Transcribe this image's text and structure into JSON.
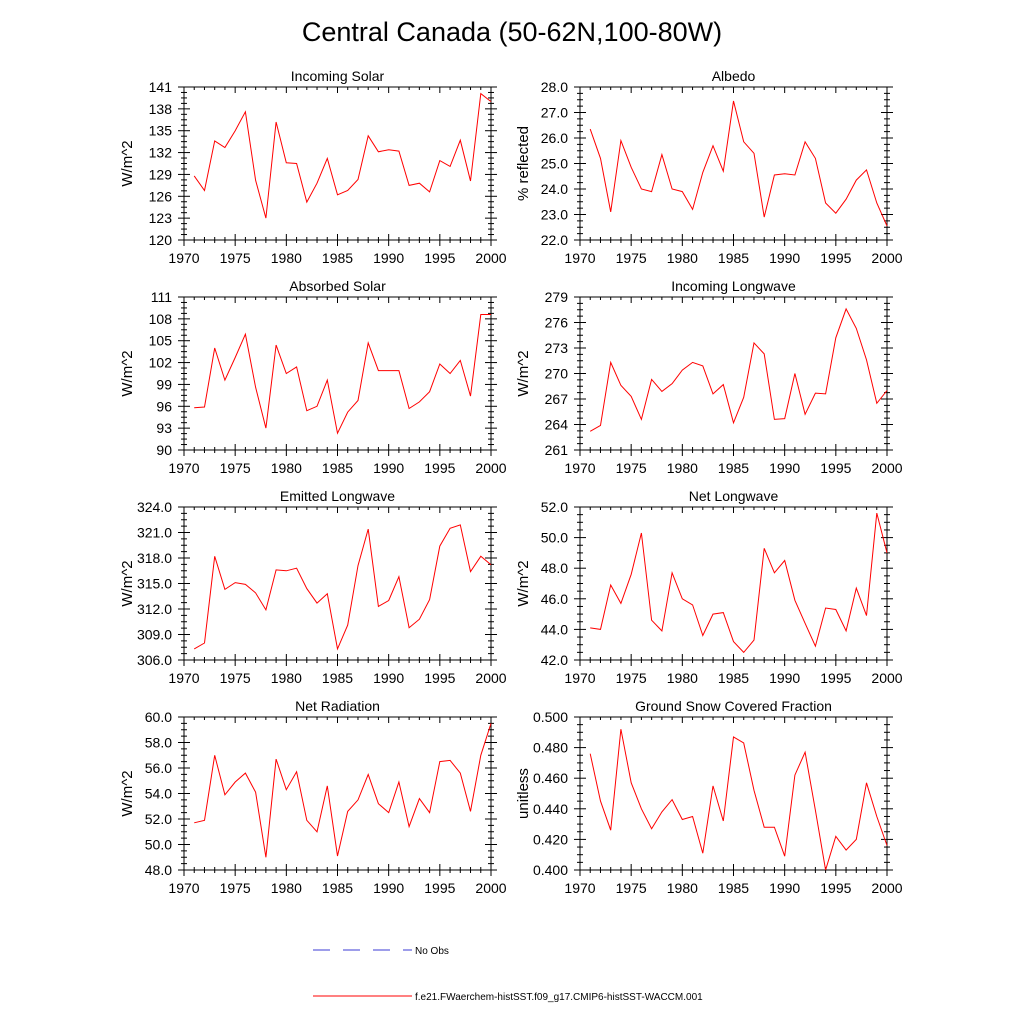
{
  "title": "Central Canada (50-62N,100-80W)",
  "legend": [
    {
      "label": "No Obs",
      "color": "#3b3bd6",
      "style": "dashed"
    },
    {
      "label": "f.e21.FWaerchem-histSST.f09_g17.CMIP6-histSST-WACCM.001",
      "color": "#ff0000",
      "style": "solid"
    }
  ],
  "chart_data": [
    {
      "type": "line",
      "title": "Incoming Solar",
      "ylabel": "W/m^2",
      "xlim": [
        1970,
        2000
      ],
      "ylim": [
        120,
        141
      ],
      "xticks": [
        1970,
        1975,
        1980,
        1985,
        1990,
        1995,
        2000
      ],
      "yticks": [
        "120",
        "123",
        "126",
        "129",
        "132",
        "135",
        "138",
        "141"
      ],
      "x": [
        1971,
        1972,
        1973,
        1974,
        1975,
        1976,
        1977,
        1978,
        1979,
        1980,
        1981,
        1982,
        1983,
        1984,
        1985,
        1986,
        1987,
        1988,
        1989,
        1990,
        1991,
        1992,
        1993,
        1994,
        1995,
        1996,
        1997,
        1998,
        1999,
        2000
      ],
      "series": [
        {
          "color": "#ff0000",
          "values": [
            128.8,
            126.8,
            133.6,
            132.7,
            135.0,
            137.6,
            128.2,
            123.0,
            136.2,
            130.6,
            130.5,
            125.2,
            127.8,
            131.2,
            126.2,
            126.8,
            128.3,
            134.3,
            132.1,
            132.4,
            132.2,
            127.5,
            127.8,
            126.6,
            130.9,
            130.1,
            133.7,
            128.1,
            140.1,
            139.0
          ]
        }
      ]
    },
    {
      "type": "line",
      "title": "Albedo",
      "ylabel": "% reflected",
      "xlim": [
        1970,
        2000
      ],
      "ylim": [
        22.0,
        28.0
      ],
      "xticks": [
        1970,
        1975,
        1980,
        1985,
        1990,
        1995,
        2000
      ],
      "yticks": [
        "22.0",
        "23.0",
        "24.0",
        "25.0",
        "26.0",
        "27.0",
        "28.0"
      ],
      "x": [
        1971,
        1972,
        1973,
        1974,
        1975,
        1976,
        1977,
        1978,
        1979,
        1980,
        1981,
        1982,
        1983,
        1984,
        1985,
        1986,
        1987,
        1988,
        1989,
        1990,
        1991,
        1992,
        1993,
        1994,
        1995,
        1996,
        1997,
        1998,
        1999,
        2000
      ],
      "series": [
        {
          "color": "#ff0000",
          "values": [
            26.35,
            25.2,
            23.1,
            25.9,
            24.85,
            24.0,
            23.9,
            25.35,
            24.0,
            23.9,
            23.2,
            24.65,
            25.7,
            24.7,
            27.45,
            25.85,
            25.4,
            22.9,
            24.55,
            24.6,
            24.55,
            25.85,
            25.2,
            23.45,
            23.05,
            23.6,
            24.35,
            24.75,
            23.45,
            22.55
          ]
        }
      ]
    },
    {
      "type": "line",
      "title": "Absorbed Solar",
      "ylabel": "W/m^2",
      "xlim": [
        1970,
        2000
      ],
      "ylim": [
        90,
        111
      ],
      "xticks": [
        1970,
        1975,
        1980,
        1985,
        1990,
        1995,
        2000
      ],
      "yticks": [
        "90",
        "93",
        "96",
        "99",
        "102",
        "105",
        "108",
        "111"
      ],
      "x": [
        1971,
        1972,
        1973,
        1974,
        1975,
        1976,
        1977,
        1978,
        1979,
        1980,
        1981,
        1982,
        1983,
        1984,
        1985,
        1986,
        1987,
        1988,
        1989,
        1990,
        1991,
        1992,
        1993,
        1994,
        1995,
        1996,
        1997,
        1998,
        1999,
        2000
      ],
      "series": [
        {
          "color": "#ff0000",
          "values": [
            95.8,
            95.9,
            104.0,
            99.6,
            102.7,
            105.9,
            98.6,
            93.0,
            104.4,
            100.5,
            101.4,
            95.4,
            96.0,
            99.6,
            92.3,
            95.2,
            96.8,
            104.7,
            100.9,
            100.9,
            100.9,
            95.7,
            96.6,
            98.0,
            101.8,
            100.5,
            102.3,
            97.4,
            108.6,
            108.6
          ]
        }
      ]
    },
    {
      "type": "line",
      "title": "Incoming Longwave",
      "ylabel": "W/m^2",
      "xlim": [
        1970,
        2000
      ],
      "ylim": [
        261,
        279
      ],
      "xticks": [
        1970,
        1975,
        1980,
        1985,
        1990,
        1995,
        2000
      ],
      "yticks": [
        "261",
        "264",
        "267",
        "270",
        "273",
        "276",
        "279"
      ],
      "x": [
        1971,
        1972,
        1973,
        1974,
        1975,
        1976,
        1977,
        1978,
        1979,
        1980,
        1981,
        1982,
        1983,
        1984,
        1985,
        1986,
        1987,
        1988,
        1989,
        1990,
        1991,
        1992,
        1993,
        1994,
        1995,
        1996,
        1997,
        1998,
        1999,
        2000
      ],
      "series": [
        {
          "color": "#ff0000",
          "values": [
            263.2,
            263.9,
            271.3,
            268.6,
            267.3,
            264.6,
            269.3,
            267.9,
            268.8,
            270.4,
            271.3,
            270.9,
            267.6,
            268.7,
            264.2,
            267.2,
            273.6,
            272.3,
            264.6,
            264.7,
            270.0,
            265.2,
            267.7,
            267.6,
            274.2,
            277.6,
            275.3,
            271.6,
            266.5,
            268.0
          ]
        }
      ]
    },
    {
      "type": "line",
      "title": "Emitted Longwave",
      "ylabel": "W/m^2",
      "xlim": [
        1970,
        2000
      ],
      "ylim": [
        306.0,
        324.0
      ],
      "xticks": [
        1970,
        1975,
        1980,
        1985,
        1990,
        1995,
        2000
      ],
      "yticks": [
        "306.0",
        "309.0",
        "312.0",
        "315.0",
        "318.0",
        "321.0",
        "324.0"
      ],
      "x": [
        1971,
        1972,
        1973,
        1974,
        1975,
        1976,
        1977,
        1978,
        1979,
        1980,
        1981,
        1982,
        1983,
        1984,
        1985,
        1986,
        1987,
        1988,
        1989,
        1990,
        1991,
        1992,
        1993,
        1994,
        1995,
        1996,
        1997,
        1998,
        1999,
        2000
      ],
      "series": [
        {
          "color": "#ff0000",
          "values": [
            307.3,
            308.0,
            318.2,
            314.3,
            315.1,
            314.9,
            313.9,
            311.9,
            316.6,
            316.5,
            316.8,
            314.4,
            312.7,
            313.8,
            307.3,
            310.1,
            317.1,
            321.4,
            312.3,
            313.0,
            315.8,
            309.8,
            310.8,
            313.1,
            319.4,
            321.5,
            321.9,
            316.4,
            318.2,
            317.2
          ]
        }
      ]
    },
    {
      "type": "line",
      "title": "Net Longwave",
      "ylabel": "W/m^2",
      "xlim": [
        1970,
        2000
      ],
      "ylim": [
        42.0,
        52.0
      ],
      "xticks": [
        1970,
        1975,
        1980,
        1985,
        1990,
        1995,
        2000
      ],
      "yticks": [
        "42.0",
        "44.0",
        "46.0",
        "48.0",
        "50.0",
        "52.0"
      ],
      "x": [
        1971,
        1972,
        1973,
        1974,
        1975,
        1976,
        1977,
        1978,
        1979,
        1980,
        1981,
        1982,
        1983,
        1984,
        1985,
        1986,
        1987,
        1988,
        1989,
        1990,
        1991,
        1992,
        1993,
        1994,
        1995,
        1996,
        1997,
        1998,
        1999,
        2000
      ],
      "series": [
        {
          "color": "#ff0000",
          "values": [
            44.1,
            44.0,
            46.9,
            45.7,
            47.6,
            50.3,
            44.6,
            43.9,
            47.7,
            46.0,
            45.6,
            43.6,
            45.0,
            45.1,
            43.2,
            42.5,
            43.3,
            49.3,
            47.7,
            48.5,
            45.9,
            44.4,
            42.9,
            45.4,
            45.3,
            43.9,
            46.7,
            44.9,
            51.6,
            49.0
          ]
        }
      ]
    },
    {
      "type": "line",
      "title": "Net Radiation",
      "ylabel": "W/m^2",
      "xlim": [
        1970,
        2000
      ],
      "ylim": [
        48.0,
        60.0
      ],
      "xticks": [
        1970,
        1975,
        1980,
        1985,
        1990,
        1995,
        2000
      ],
      "yticks": [
        "48.0",
        "50.0",
        "52.0",
        "54.0",
        "56.0",
        "58.0",
        "60.0"
      ],
      "x": [
        1971,
        1972,
        1973,
        1974,
        1975,
        1976,
        1977,
        1978,
        1979,
        1980,
        1981,
        1982,
        1983,
        1984,
        1985,
        1986,
        1987,
        1988,
        1989,
        1990,
        1991,
        1992,
        1993,
        1994,
        1995,
        1996,
        1997,
        1998,
        1999,
        2000
      ],
      "series": [
        {
          "color": "#ff0000",
          "values": [
            51.7,
            51.9,
            57.0,
            53.9,
            54.9,
            55.6,
            54.1,
            49.0,
            56.7,
            54.3,
            55.7,
            51.9,
            51.0,
            54.6,
            49.1,
            52.6,
            53.5,
            55.5,
            53.2,
            52.5,
            54.9,
            51.4,
            53.6,
            52.5,
            56.5,
            56.6,
            55.6,
            52.6,
            57.0,
            59.5
          ]
        }
      ]
    },
    {
      "type": "line",
      "title": "Ground Snow Covered Fraction",
      "ylabel": "unitless",
      "xlim": [
        1970,
        2000
      ],
      "ylim": [
        0.4,
        0.5
      ],
      "xticks": [
        1970,
        1975,
        1980,
        1985,
        1990,
        1995,
        2000
      ],
      "yticks": [
        "0.400",
        "0.420",
        "0.440",
        "0.460",
        "0.480",
        "0.500"
      ],
      "x": [
        1971,
        1972,
        1973,
        1974,
        1975,
        1976,
        1977,
        1978,
        1979,
        1980,
        1981,
        1982,
        1983,
        1984,
        1985,
        1986,
        1987,
        1988,
        1989,
        1990,
        1991,
        1992,
        1993,
        1994,
        1995,
        1996,
        1997,
        1998,
        1999,
        2000
      ],
      "series": [
        {
          "color": "#ff0000",
          "values": [
            0.476,
            0.445,
            0.426,
            0.492,
            0.457,
            0.44,
            0.427,
            0.438,
            0.446,
            0.433,
            0.435,
            0.411,
            0.455,
            0.432,
            0.487,
            0.483,
            0.452,
            0.428,
            0.428,
            0.409,
            0.462,
            0.477,
            0.439,
            0.4,
            0.422,
            0.413,
            0.42,
            0.457,
            0.435,
            0.416
          ]
        }
      ]
    }
  ]
}
